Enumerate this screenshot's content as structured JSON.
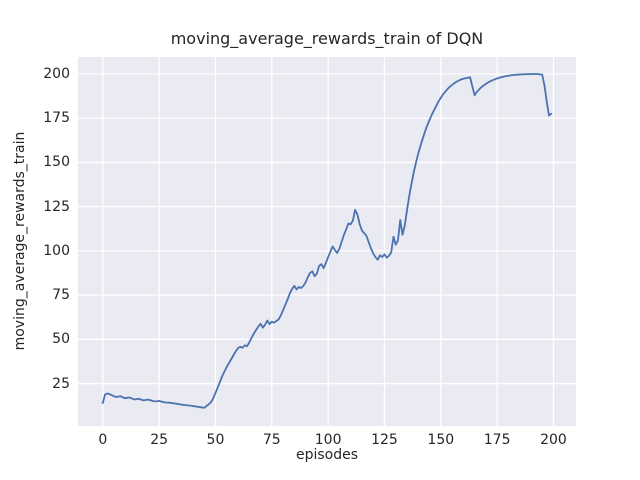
{
  "figure": {
    "title": "moving_average_rewards_train of DQN",
    "xlabel": "episodes",
    "ylabel": "moving_average_rewards_train"
  },
  "chart_data": {
    "type": "line",
    "title": "moving_average_rewards_train of DQN",
    "xlabel": "episodes",
    "ylabel": "moving_average_rewards_train",
    "x_ticks": [
      0,
      25,
      50,
      75,
      100,
      125,
      150,
      175,
      200
    ],
    "y_ticks": [
      25,
      50,
      75,
      100,
      125,
      150,
      175,
      200
    ],
    "xlim": [
      -11,
      210
    ],
    "ylim": [
      1,
      209.6
    ],
    "grid": true,
    "legend_position": "none",
    "colors": {
      "line": "#4c72b0",
      "plot_background": "#eaeaf2",
      "grid": "#ffffff",
      "figure_background": "#ffffff",
      "text": "#262626"
    },
    "series": [
      {
        "name": "moving_average_rewards_train",
        "points": [
          [
            0,
            14.0
          ],
          [
            1,
            18.8
          ],
          [
            2,
            19.4
          ],
          [
            3,
            19.0
          ],
          [
            4,
            18.4
          ],
          [
            5,
            17.8
          ],
          [
            6,
            17.4
          ],
          [
            7,
            17.7
          ],
          [
            8,
            17.8
          ],
          [
            9,
            17.1
          ],
          [
            10,
            16.7
          ],
          [
            11,
            17.0
          ],
          [
            12,
            17.1
          ],
          [
            13,
            16.5
          ],
          [
            14,
            16.0
          ],
          [
            15,
            16.2
          ],
          [
            16,
            16.4
          ],
          [
            17,
            15.9
          ],
          [
            18,
            15.5
          ],
          [
            19,
            15.7
          ],
          [
            20,
            15.9
          ],
          [
            21,
            15.6
          ],
          [
            22,
            15.2
          ],
          [
            23,
            14.9
          ],
          [
            24,
            15.0
          ],
          [
            25,
            15.2
          ],
          [
            26,
            14.8
          ],
          [
            27,
            14.5
          ],
          [
            28,
            14.3
          ],
          [
            29,
            14.2
          ],
          [
            30,
            14.1
          ],
          [
            31,
            13.9
          ],
          [
            32,
            13.7
          ],
          [
            33,
            13.5
          ],
          [
            34,
            13.3
          ],
          [
            35,
            13.1
          ],
          [
            36,
            12.9
          ],
          [
            37,
            12.8
          ],
          [
            38,
            12.6
          ],
          [
            39,
            12.5
          ],
          [
            40,
            12.3
          ],
          [
            41,
            12.1
          ],
          [
            42,
            11.9
          ],
          [
            43,
            11.7
          ],
          [
            44,
            11.5
          ],
          [
            45,
            11.3
          ],
          [
            46,
            12.3
          ],
          [
            47,
            13.2
          ],
          [
            48,
            14.5
          ],
          [
            49,
            16.6
          ],
          [
            50,
            19.7
          ],
          [
            51,
            22.8
          ],
          [
            52,
            26.0
          ],
          [
            53,
            29.2
          ],
          [
            54,
            31.8
          ],
          [
            55,
            34.3
          ],
          [
            56,
            36.6
          ],
          [
            57,
            38.8
          ],
          [
            58,
            41.0
          ],
          [
            59,
            43.2
          ],
          [
            60,
            45.0
          ],
          [
            61,
            45.8
          ],
          [
            62,
            45.2
          ],
          [
            63,
            46.6
          ],
          [
            64,
            46.1
          ],
          [
            65,
            48.2
          ],
          [
            66,
            50.8
          ],
          [
            67,
            53.2
          ],
          [
            68,
            55.2
          ],
          [
            69,
            57.2
          ],
          [
            70,
            58.8
          ],
          [
            71,
            56.6
          ],
          [
            72,
            58.2
          ],
          [
            73,
            60.6
          ],
          [
            74,
            58.6
          ],
          [
            75,
            60.0
          ],
          [
            76,
            59.4
          ],
          [
            77,
            60.4
          ],
          [
            78,
            61.2
          ],
          [
            79,
            63.5
          ],
          [
            80,
            66.5
          ],
          [
            81,
            69.5
          ],
          [
            82,
            72.5
          ],
          [
            83,
            76.0
          ],
          [
            84,
            78.5
          ],
          [
            85,
            80.2
          ],
          [
            86,
            78.2
          ],
          [
            87,
            79.6
          ],
          [
            88,
            79.0
          ],
          [
            89,
            80.2
          ],
          [
            90,
            82.2
          ],
          [
            91,
            85.2
          ],
          [
            92,
            87.6
          ],
          [
            93,
            88.5
          ],
          [
            94,
            85.6
          ],
          [
            95,
            87.2
          ],
          [
            96,
            91.5
          ],
          [
            97,
            92.5
          ],
          [
            98,
            90.2
          ],
          [
            99,
            93.2
          ],
          [
            100,
            96.5
          ],
          [
            101,
            99.5
          ],
          [
            102,
            102.5
          ],
          [
            103,
            100.5
          ],
          [
            104,
            98.8
          ],
          [
            105,
            101.2
          ],
          [
            106,
            105.2
          ],
          [
            107,
            109.0
          ],
          [
            108,
            112.2
          ],
          [
            109,
            115.5
          ],
          [
            110,
            115.0
          ],
          [
            111,
            117.2
          ],
          [
            112,
            123.2
          ],
          [
            113,
            120.5
          ],
          [
            114,
            115.2
          ],
          [
            115,
            111.5
          ],
          [
            116,
            110.0
          ],
          [
            117,
            108.5
          ],
          [
            118,
            105.0
          ],
          [
            119,
            101.5
          ],
          [
            120,
            98.5
          ],
          [
            121,
            96.5
          ],
          [
            122,
            95.0
          ],
          [
            123,
            97.5
          ],
          [
            124,
            96.5
          ],
          [
            125,
            98.0
          ],
          [
            126,
            96.2
          ],
          [
            127,
            97.2
          ],
          [
            128,
            99.2
          ],
          [
            129,
            108.0
          ],
          [
            130,
            103.5
          ],
          [
            131,
            106.0
          ],
          [
            132,
            117.5
          ],
          [
            133,
            109.2
          ],
          [
            134,
            114.2
          ],
          [
            135,
            123.0
          ],
          [
            136,
            131.0
          ],
          [
            137,
            138.0
          ],
          [
            138,
            144.5
          ],
          [
            139,
            150.0
          ],
          [
            140,
            155.0
          ],
          [
            141,
            159.5
          ],
          [
            142,
            163.5
          ],
          [
            143,
            167.5
          ],
          [
            144,
            171.0
          ],
          [
            145,
            174.0
          ],
          [
            146,
            177.0
          ],
          [
            147,
            179.5
          ],
          [
            148,
            182.0
          ],
          [
            149,
            184.5
          ],
          [
            150,
            186.5
          ],
          [
            151,
            188.5
          ],
          [
            152,
            190.0
          ],
          [
            153,
            191.5
          ],
          [
            154,
            192.8
          ],
          [
            155,
            193.8
          ],
          [
            156,
            194.8
          ],
          [
            157,
            195.6
          ],
          [
            158,
            196.3
          ],
          [
            159,
            196.9
          ],
          [
            160,
            197.3
          ],
          [
            161,
            197.6
          ],
          [
            162,
            197.9
          ],
          [
            163,
            198.1
          ],
          [
            164,
            193.0
          ],
          [
            165,
            188.0
          ],
          [
            166,
            189.8
          ],
          [
            167,
            191.2
          ],
          [
            168,
            192.5
          ],
          [
            169,
            193.5
          ],
          [
            170,
            194.4
          ],
          [
            171,
            195.2
          ],
          [
            172,
            195.9
          ],
          [
            173,
            196.5
          ],
          [
            174,
            197.0
          ],
          [
            175,
            197.5
          ],
          [
            176,
            197.9
          ],
          [
            177,
            198.2
          ],
          [
            178,
            198.5
          ],
          [
            179,
            198.8
          ],
          [
            180,
            199.0
          ],
          [
            181,
            199.2
          ],
          [
            182,
            199.4
          ],
          [
            183,
            199.5
          ],
          [
            184,
            199.6
          ],
          [
            185,
            199.7
          ],
          [
            186,
            199.8
          ],
          [
            187,
            199.8
          ],
          [
            188,
            199.9
          ],
          [
            189,
            199.9
          ],
          [
            190,
            199.9
          ],
          [
            191,
            200.0
          ],
          [
            192,
            200.0
          ],
          [
            193,
            199.9
          ],
          [
            194,
            199.8
          ],
          [
            195,
            199.6
          ],
          [
            196,
            193.5
          ],
          [
            197,
            184.5
          ],
          [
            198,
            176.5
          ],
          [
            199,
            177.5
          ]
        ]
      }
    ]
  }
}
